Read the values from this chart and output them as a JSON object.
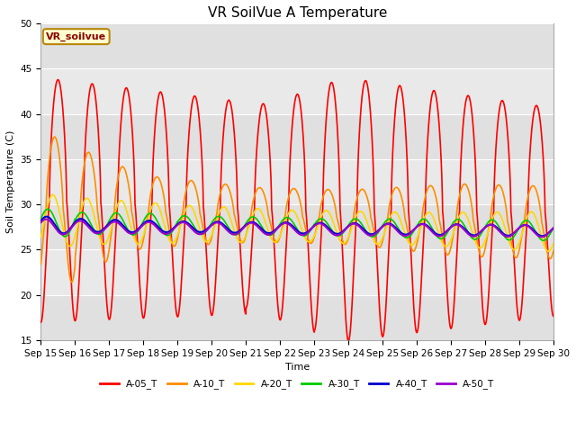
{
  "title": "VR SoilVue A Temperature",
  "xlabel": "Time",
  "ylabel": "Soil Temperature (C)",
  "ylim": [
    15,
    50
  ],
  "xlim_days": [
    0,
    15
  ],
  "x_tick_labels": [
    "Sep 15",
    "Sep 16",
    "Sep 17",
    "Sep 18",
    "Sep 19",
    "Sep 20",
    "Sep 21",
    "Sep 22",
    "Sep 23",
    "Sep 24",
    "Sep 25",
    "Sep 26",
    "Sep 27",
    "Sep 28",
    "Sep 29",
    "Sep 30"
  ],
  "series_colors": {
    "A-05_T": "#FF0000",
    "A-10_T": "#FF8C00",
    "A-20_T": "#FFD700",
    "A-30_T": "#00CC00",
    "A-40_T": "#0000CD",
    "A-50_T": "#9900CC"
  },
  "series_names": [
    "A-05_T",
    "A-10_T",
    "A-20_T",
    "A-30_T",
    "A-40_T",
    "A-50_T"
  ],
  "legend_label": "VR_soilvue",
  "background_color": "#E8E8E8",
  "fig_background": "#FFFFFF",
  "title_fontsize": 11,
  "axis_label_fontsize": 8,
  "tick_fontsize": 7.5
}
